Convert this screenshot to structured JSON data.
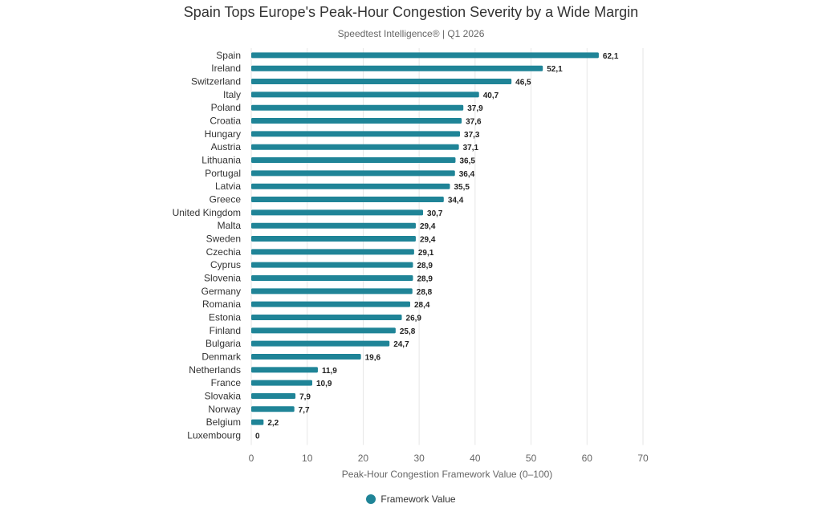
{
  "chart_data": {
    "type": "bar",
    "orientation": "horizontal",
    "title": "Spain Tops Europe's Peak-Hour Congestion Severity by a Wide Margin",
    "subtitle": "Speedtest Intelligence® | Q1 2026",
    "xlabel": "Peak-Hour Congestion Framework Value (0–100)",
    "ylabel": "",
    "xlim": [
      0,
      70
    ],
    "xticks": [
      0,
      10,
      20,
      30,
      40,
      50,
      60,
      70
    ],
    "grid": "vertical",
    "legend_position": "bottom",
    "categories": [
      "Spain",
      "Ireland",
      "Switzerland",
      "Italy",
      "Poland",
      "Croatia",
      "Hungary",
      "Austria",
      "Lithuania",
      "Portugal",
      "Latvia",
      "Greece",
      "United Kingdom",
      "Malta",
      "Sweden",
      "Czechia",
      "Cyprus",
      "Slovenia",
      "Germany",
      "Romania",
      "Estonia",
      "Finland",
      "Bulgaria",
      "Denmark",
      "Netherlands",
      "France",
      "Slovakia",
      "Norway",
      "Belgium",
      "Luxembourg"
    ],
    "series": [
      {
        "name": "Framework Value",
        "color": "#1f8497",
        "values": [
          62.1,
          52.1,
          46.5,
          40.7,
          37.9,
          37.6,
          37.3,
          37.1,
          36.5,
          36.4,
          35.5,
          34.4,
          30.7,
          29.4,
          29.4,
          29.1,
          28.9,
          28.9,
          28.8,
          28.4,
          26.9,
          25.8,
          24.7,
          19.6,
          11.9,
          10.9,
          7.9,
          7.7,
          2.2,
          0
        ],
        "labels": [
          "62,1",
          "52,1",
          "46,5",
          "40,7",
          "37,9",
          "37,6",
          "37,3",
          "37,1",
          "36,5",
          "36,4",
          "35,5",
          "34,4",
          "30,7",
          "29,4",
          "29,4",
          "29,1",
          "28,9",
          "28,9",
          "28,8",
          "28,4",
          "26,9",
          "25,8",
          "24,7",
          "19,6",
          "11,9",
          "10,9",
          "7,9",
          "7,7",
          "2,2",
          "0"
        ]
      }
    ]
  }
}
